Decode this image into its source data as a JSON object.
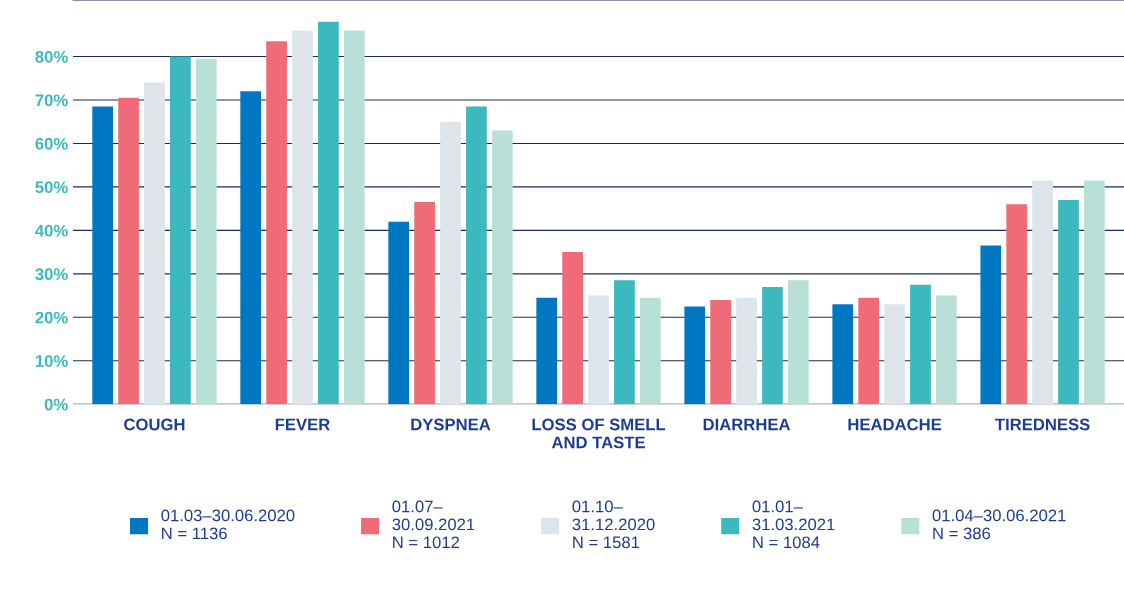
{
  "chart_data": {
    "type": "bar",
    "categories": [
      "COUGH",
      "FEVER",
      "DYSPNEA",
      "LOSS OF SMELL\nAND TASTE",
      "DIARRHEA",
      "HEADACHE",
      "TIREDNESS"
    ],
    "series": [
      {
        "name": "01.03–30.06.2020\nN = 1136",
        "color": "#0077c0",
        "values": [
          68.5,
          72,
          42,
          24.5,
          22.5,
          23,
          36.5
        ]
      },
      {
        "name": "01.07–\n30.09.2021\nN = 1012",
        "color": "#ef6b77",
        "values": [
          70.5,
          83.5,
          46.5,
          35,
          24,
          24.5,
          46
        ]
      },
      {
        "name": "01.10–\n31.12.2020\nN = 1581",
        "color": "#dde4ea",
        "values": [
          74,
          86,
          65,
          25,
          24.5,
          23,
          51.5
        ]
      },
      {
        "name": "01.01–\n31.03.2021\nN = 1084",
        "color": "#3bb9bf",
        "values": [
          80,
          88,
          68.5,
          28.5,
          27,
          27.5,
          47
        ]
      },
      {
        "name": "01.04–30.06.2021\nN = 386",
        "color": "#b9e0d6",
        "values": [
          79.5,
          86,
          63,
          24.5,
          28.5,
          25,
          51.5
        ]
      }
    ],
    "ylim": [
      0,
      93
    ],
    "yticks": [
      {
        "value": 0,
        "label": "0%"
      },
      {
        "value": 10,
        "label": "10%"
      },
      {
        "value": 20,
        "label": "20%"
      },
      {
        "value": 30,
        "label": "30%"
      },
      {
        "value": 40,
        "label": "40%"
      },
      {
        "value": 50,
        "label": "50%"
      },
      {
        "value": 60,
        "label": "60%"
      },
      {
        "value": 70,
        "label": "70%"
      },
      {
        "value": 80,
        "label": "80%"
      }
    ],
    "grid": "y",
    "legend": "bottom"
  }
}
